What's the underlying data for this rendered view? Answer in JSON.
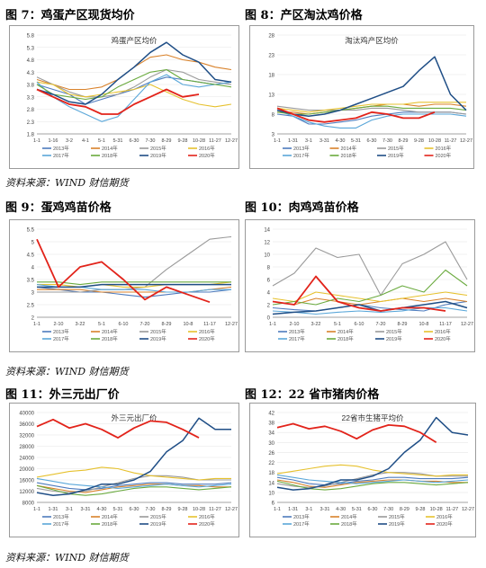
{
  "captions": {
    "fig7": "图 7：鸡蛋产区现货均价",
    "fig8": "图 8：产区淘汰鸡价格",
    "fig9": "图 9：蛋鸡鸡苗价格",
    "fig10": "图 10：肉鸡鸡苗价格",
    "fig11": "图 11：外三元出厂价",
    "fig12": "图 12：22 省市猪肉价格",
    "source": "资料来源：WIND  财信期货"
  },
  "chart_data": [
    {
      "id": "fig7",
      "type": "line",
      "title": "鸡蛋产区均价",
      "x_ticks": [
        "1-1",
        "1-16",
        "3-2",
        "4-1",
        "5-1",
        "5-31",
        "6-30",
        "7-30",
        "8-29",
        "9-28",
        "10-28",
        "11-27",
        "12-27"
      ],
      "ylim": [
        1.8,
        5.8
      ],
      "y_ticks": [
        "1.8",
        "2.3",
        "2.8",
        "3.3",
        "3.8",
        "4.3",
        "4.8",
        "5.3",
        "5.8"
      ],
      "legend_position": "bottom",
      "series": [
        {
          "name": "2013年",
          "color": "#4e7bbd",
          "values": [
            3.8,
            3.6,
            3.4,
            3.0,
            3.2,
            3.4,
            3.6,
            3.9,
            4.1,
            4.0,
            3.9,
            3.8,
            3.9
          ]
        },
        {
          "name": "2014年",
          "color": "#d9822b",
          "values": [
            4.0,
            3.8,
            3.6,
            3.6,
            3.7,
            4.0,
            4.5,
            4.9,
            5.0,
            4.8,
            4.7,
            4.5,
            4.4
          ]
        },
        {
          "name": "2015年",
          "color": "#9a9a9a",
          "values": [
            4.1,
            3.8,
            3.5,
            3.3,
            3.3,
            3.4,
            3.7,
            4.1,
            4.4,
            4.3,
            4.0,
            3.9,
            3.8
          ]
        },
        {
          "name": "2016年",
          "color": "#e6c12e",
          "values": [
            3.9,
            3.8,
            3.4,
            3.3,
            3.4,
            3.5,
            3.6,
            3.8,
            3.5,
            3.2,
            3.0,
            2.9,
            3.0
          ]
        },
        {
          "name": "2017年",
          "color": "#5aa7d9",
          "values": [
            3.9,
            3.3,
            2.9,
            2.6,
            2.3,
            2.5,
            3.2,
            3.9,
            4.2,
            3.8,
            3.7,
            3.8,
            3.9
          ]
        },
        {
          "name": "2018年",
          "color": "#6aaa3e",
          "values": [
            3.8,
            3.4,
            3.3,
            3.2,
            3.3,
            3.7,
            4.0,
            4.3,
            4.4,
            4.0,
            3.9,
            3.8,
            3.7
          ]
        },
        {
          "name": "2019年",
          "color": "#1f4e86",
          "values": [
            3.6,
            3.4,
            3.1,
            3.0,
            3.4,
            4.0,
            4.5,
            5.1,
            5.5,
            5.0,
            4.7,
            4.0,
            3.9
          ]
        },
        {
          "name": "2020年",
          "color": "#e2231a",
          "values": [
            3.6,
            3.3,
            3.0,
            2.9,
            2.6,
            2.6,
            3.0,
            3.3,
            3.6,
            3.3,
            3.4,
            null,
            null
          ]
        }
      ]
    },
    {
      "id": "fig8",
      "type": "line",
      "title": "淘汰鸡产区均价",
      "x_ticks": [
        "1-1",
        "1-31",
        "3-1",
        "3-31",
        "4-30",
        "5-31",
        "6-30",
        "7-30",
        "8-29",
        "9-28",
        "10-28",
        "11-27",
        "12-27"
      ],
      "ylim": [
        3,
        28
      ],
      "y_ticks": [
        "3",
        "8",
        "13",
        "18",
        "23",
        "28"
      ],
      "legend_position": "bottom",
      "series": [
        {
          "name": "2013年",
          "color": "#4e7bbd",
          "values": [
            8.0,
            7.5,
            5.5,
            5.5,
            6.0,
            6.5,
            7.5,
            8.0,
            8.5,
            8.5,
            8.5,
            8.5,
            8.0
          ]
        },
        {
          "name": "2014年",
          "color": "#d9822b",
          "values": [
            8.5,
            8.5,
            8.0,
            8.5,
            9.0,
            9.5,
            10.0,
            10.5,
            10.5,
            10.0,
            10.5,
            10.5,
            10.0
          ]
        },
        {
          "name": "2015年",
          "color": "#9a9a9a",
          "values": [
            10.0,
            9.5,
            9.0,
            9.0,
            9.0,
            9.0,
            9.5,
            9.5,
            9.0,
            8.5,
            8.5,
            8.5,
            8.0
          ]
        },
        {
          "name": "2016年",
          "color": "#e6c12e",
          "values": [
            9.5,
            9.0,
            8.5,
            9.0,
            9.5,
            10.0,
            10.5,
            10.5,
            10.5,
            11.0,
            11.0,
            11.0,
            11.0
          ]
        },
        {
          "name": "2017年",
          "color": "#5aa7d9",
          "values": [
            9.0,
            7.5,
            6.0,
            5.0,
            4.5,
            4.5,
            6.5,
            7.5,
            8.0,
            8.0,
            8.0,
            8.0,
            7.5
          ]
        },
        {
          "name": "2018年",
          "color": "#6aaa3e",
          "values": [
            8.5,
            8.0,
            8.0,
            8.5,
            9.0,
            9.5,
            10.0,
            10.0,
            9.5,
            9.5,
            9.5,
            9.5,
            9.0
          ]
        },
        {
          "name": "2019年",
          "color": "#1f4e86",
          "values": [
            9.0,
            8.0,
            7.5,
            8.0,
            9.0,
            10.5,
            12.0,
            13.5,
            15.0,
            19.0,
            22.5,
            13.0,
            9.0
          ]
        },
        {
          "name": "2020年",
          "color": "#e2231a",
          "values": [
            9.5,
            8.0,
            6.5,
            6.0,
            6.5,
            7.0,
            8.5,
            8.0,
            7.0,
            7.0,
            8.5,
            null,
            null
          ]
        }
      ]
    },
    {
      "id": "fig9",
      "type": "line",
      "x_ticks": [
        "1-1",
        "2-10",
        "3-22",
        "5-1",
        "6-10",
        "7-20",
        "8-29",
        "10-8",
        "11-17",
        "12-27"
      ],
      "ylim": [
        2,
        5.5
      ],
      "y_ticks": [
        "2",
        "2.5",
        "3",
        "3.5",
        "4",
        "4.5",
        "5",
        "5.5"
      ],
      "legend_position": "bottom",
      "series": [
        {
          "name": "2013年",
          "color": "#4e7bbd",
          "values": [
            3.2,
            3.1,
            3.0,
            3.0,
            2.9,
            2.8,
            2.9,
            3.0,
            3.0,
            3.1
          ]
        },
        {
          "name": "2014年",
          "color": "#d9822b",
          "values": [
            3.1,
            3.1,
            3.1,
            3.0,
            3.0,
            3.0,
            3.0,
            3.0,
            3.1,
            3.2
          ]
        },
        {
          "name": "2015年",
          "color": "#9a9a9a",
          "values": [
            3.0,
            3.0,
            3.0,
            3.1,
            3.1,
            3.2,
            3.9,
            4.5,
            5.1,
            5.2
          ]
        },
        {
          "name": "2016年",
          "color": "#e6c12e",
          "values": [
            3.3,
            3.3,
            3.2,
            3.3,
            3.2,
            3.2,
            3.3,
            3.3,
            3.3,
            3.4
          ]
        },
        {
          "name": "2017年",
          "color": "#5aa7d9",
          "values": [
            3.3,
            3.2,
            3.2,
            3.1,
            3.1,
            3.1,
            3.0,
            3.0,
            3.1,
            3.1
          ]
        },
        {
          "name": "2018年",
          "color": "#6aaa3e",
          "values": [
            3.4,
            3.4,
            3.3,
            3.4,
            3.4,
            3.4,
            3.4,
            3.4,
            3.4,
            3.4
          ]
        },
        {
          "name": "2019年",
          "color": "#1f4e86",
          "values": [
            3.2,
            3.2,
            3.2,
            3.3,
            3.3,
            3.3,
            3.3,
            3.3,
            3.3,
            3.3
          ]
        },
        {
          "name": "2020年",
          "color": "#e2231a",
          "values": [
            5.1,
            3.2,
            4.0,
            4.2,
            3.5,
            2.7,
            3.2,
            2.9,
            2.6,
            null
          ]
        }
      ]
    },
    {
      "id": "fig10",
      "type": "line",
      "x_ticks": [
        "1-1",
        "2-10",
        "3-22",
        "5-1",
        "6-10",
        "7-20",
        "8-29",
        "10-8",
        "11-17",
        "12-27"
      ],
      "ylim": [
        0,
        14
      ],
      "y_ticks": [
        "0",
        "2",
        "4",
        "6",
        "8",
        "10",
        "12",
        "14"
      ],
      "legend_position": "bottom",
      "series": [
        {
          "name": "2013年",
          "color": "#4e7bbd",
          "values": [
            1.5,
            1.2,
            1.0,
            1.5,
            2.0,
            1.5,
            1.2,
            1.0,
            2.0,
            2.5
          ]
        },
        {
          "name": "2014年",
          "color": "#d9822b",
          "values": [
            2.5,
            2.0,
            3.0,
            2.5,
            2.0,
            2.5,
            3.0,
            2.5,
            3.0,
            2.5
          ]
        },
        {
          "name": "2015年",
          "color": "#9a9a9a",
          "values": [
            5.0,
            7.0,
            11.0,
            9.5,
            10.0,
            3.5,
            8.5,
            10.0,
            12.0,
            6.0
          ]
        },
        {
          "name": "2016年",
          "color": "#e6c12e",
          "values": [
            3.0,
            2.5,
            4.0,
            3.5,
            3.0,
            2.5,
            3.0,
            3.5,
            4.0,
            3.5
          ]
        },
        {
          "name": "2017年",
          "color": "#5aa7d9",
          "values": [
            1.0,
            0.8,
            0.5,
            0.8,
            1.0,
            0.8,
            1.0,
            1.5,
            1.5,
            1.0
          ]
        },
        {
          "name": "2018年",
          "color": "#6aaa3e",
          "values": [
            2.0,
            2.5,
            2.0,
            3.0,
            2.5,
            3.5,
            5.0,
            4.0,
            7.5,
            5.0
          ]
        },
        {
          "name": "2019年",
          "color": "#1f4e86",
          "values": [
            0.5,
            0.8,
            1.0,
            1.5,
            2.0,
            1.0,
            1.5,
            2.0,
            2.5,
            1.5
          ]
        },
        {
          "name": "2020年",
          "color": "#e2231a",
          "values": [
            2.5,
            2.0,
            6.5,
            2.5,
            1.5,
            1.0,
            1.5,
            1.5,
            1.0,
            null
          ]
        }
      ]
    },
    {
      "id": "fig11",
      "type": "line",
      "title": "外三元出厂价",
      "x_ticks": [
        "1-1",
        "1-31",
        "3-1",
        "3-31",
        "4-30",
        "5-31",
        "6-30",
        "7-30",
        "8-29",
        "9-28",
        "10-28",
        "11-27",
        "12-27"
      ],
      "ylim": [
        8000,
        40000
      ],
      "y_ticks": [
        "8000",
        "12000",
        "16000",
        "20000",
        "24000",
        "28000",
        "32000",
        "36000",
        "40000"
      ],
      "legend_position": "bottom",
      "series": [
        {
          "name": "2013年",
          "color": "#4e7bbd",
          "values": [
            15000,
            14000,
            13000,
            12500,
            13000,
            14000,
            14500,
            15000,
            15000,
            14500,
            14500,
            14500,
            15000
          ]
        },
        {
          "name": "2014年",
          "color": "#d9822b",
          "values": [
            14000,
            13000,
            12000,
            11500,
            12500,
            13500,
            14000,
            14500,
            14500,
            14000,
            14000,
            13500,
            13500
          ]
        },
        {
          "name": "2015年",
          "color": "#9a9a9a",
          "values": [
            13000,
            12000,
            11500,
            12000,
            13500,
            15000,
            16500,
            17500,
            17500,
            17000,
            16000,
            16000,
            16000
          ]
        },
        {
          "name": "2016年",
          "color": "#e6c12e",
          "values": [
            17000,
            18000,
            19000,
            19500,
            20500,
            20000,
            18500,
            17500,
            17000,
            16500,
            16000,
            16500,
            16500
          ]
        },
        {
          "name": "2017年",
          "color": "#5aa7d9",
          "values": [
            16500,
            15500,
            14500,
            14000,
            13500,
            13000,
            13500,
            14000,
            14500,
            14000,
            13500,
            14000,
            14500
          ]
        },
        {
          "name": "2018年",
          "color": "#6aaa3e",
          "values": [
            14000,
            12500,
            11000,
            10500,
            11000,
            12000,
            13000,
            13500,
            13500,
            13000,
            12500,
            13000,
            13500
          ]
        },
        {
          "name": "2019年",
          "color": "#1f4e86",
          "values": [
            11500,
            10500,
            11000,
            12500,
            14500,
            14500,
            16000,
            19000,
            26000,
            30000,
            38000,
            34000,
            34000
          ]
        },
        {
          "name": "2020年",
          "color": "#e2231a",
          "values": [
            35000,
            37500,
            34500,
            36000,
            34000,
            31000,
            34500,
            37000,
            36500,
            34000,
            31000,
            null,
            null
          ]
        }
      ]
    },
    {
      "id": "fig12",
      "type": "line",
      "title": "22省市生猪平均价",
      "x_ticks": [
        "1-1",
        "1-31",
        "3-1",
        "3-31",
        "4-30",
        "5-31",
        "6-30",
        "7-30",
        "8-29",
        "9-28",
        "10-28",
        "11-27",
        "12-27"
      ],
      "ylim": [
        6,
        42
      ],
      "y_ticks": [
        "6",
        "10",
        "14",
        "18",
        "22",
        "26",
        "30",
        "34",
        "38",
        "42"
      ],
      "legend_position": "bottom",
      "series": [
        {
          "name": "2013年",
          "color": "#4e7bbd",
          "values": [
            16,
            15,
            13.5,
            13,
            13.5,
            14.5,
            15,
            16,
            16,
            15.5,
            15.5,
            15.5,
            16
          ]
        },
        {
          "name": "2014年",
          "color": "#d9822b",
          "values": [
            15,
            14,
            12.5,
            12,
            13,
            14,
            14.5,
            15,
            15,
            14.5,
            14.5,
            14,
            14
          ]
        },
        {
          "name": "2015年",
          "color": "#9a9a9a",
          "values": [
            13.5,
            12.5,
            12,
            12.5,
            14,
            15.5,
            17,
            18,
            18,
            17.5,
            16.5,
            16.5,
            16.5
          ]
        },
        {
          "name": "2016年",
          "color": "#e6c12e",
          "values": [
            17.5,
            18.5,
            19.5,
            20.5,
            21,
            20.5,
            19,
            18,
            17.5,
            17,
            16.5,
            17,
            17
          ]
        },
        {
          "name": "2017年",
          "color": "#5aa7d9",
          "values": [
            17,
            16,
            15,
            14.5,
            14,
            13.5,
            14,
            14.5,
            15,
            14.5,
            14,
            14.5,
            15
          ]
        },
        {
          "name": "2018年",
          "color": "#6aaa3e",
          "values": [
            14.5,
            13,
            11.5,
            11,
            11.5,
            12.5,
            13.5,
            14,
            14,
            13.5,
            13,
            13.5,
            14
          ]
        },
        {
          "name": "2019年",
          "color": "#1f4e86",
          "values": [
            12,
            11,
            11.5,
            13,
            15,
            15,
            16.5,
            19.5,
            26,
            31,
            40,
            34,
            33
          ]
        },
        {
          "name": "2020年",
          "color": "#e2231a",
          "values": [
            36,
            37.5,
            35.5,
            36.5,
            34.5,
            31.5,
            35,
            37,
            36.5,
            34,
            30,
            null,
            null
          ]
        }
      ]
    }
  ]
}
